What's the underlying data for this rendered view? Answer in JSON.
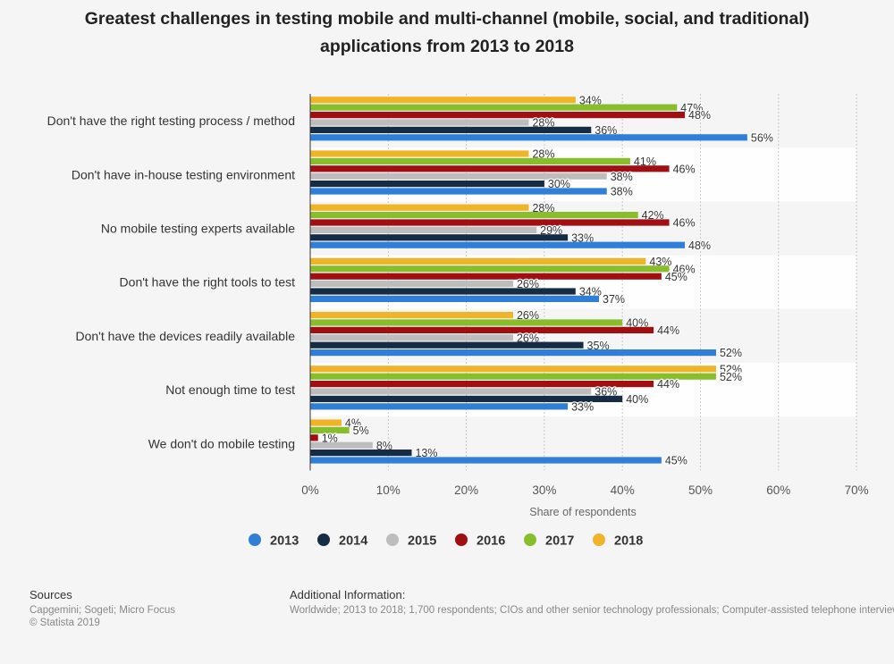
{
  "chart_data": {
    "type": "bar",
    "orientation": "horizontal",
    "title": "Greatest challenges in testing mobile and multi-channel (mobile, social, and traditional) applications from 2013 to 2018",
    "xlabel": "Share of respondents",
    "ylabel": "",
    "xlim": [
      0,
      70
    ],
    "xticks": [
      "0%",
      "10%",
      "20%",
      "30%",
      "40%",
      "50%",
      "60%",
      "70%"
    ],
    "value_suffix": "%",
    "legend_position": "bottom",
    "categories": [
      "Don't have the right testing process / method",
      "Don't have in-house testing environment",
      "No mobile testing experts available",
      "Don't have the right tools to test",
      "Don't have the devices readily available",
      "Not enough time to test",
      "We don't do mobile testing"
    ],
    "series": [
      {
        "name": "2018",
        "color": "#f0b429",
        "values": [
          34,
          28,
          28,
          43,
          26,
          52,
          4
        ]
      },
      {
        "name": "2017",
        "color": "#88be2b",
        "values": [
          47,
          41,
          42,
          46,
          40,
          52,
          5
        ]
      },
      {
        "name": "2016",
        "color": "#a10f13",
        "values": [
          48,
          46,
          46,
          45,
          44,
          44,
          1
        ]
      },
      {
        "name": "2015",
        "color": "#bdbdbd",
        "values": [
          28,
          38,
          29,
          26,
          26,
          36,
          8
        ]
      },
      {
        "name": "2014",
        "color": "#162b44",
        "values": [
          36,
          30,
          33,
          34,
          35,
          40,
          13
        ]
      },
      {
        "name": "2013",
        "color": "#2f7ed8",
        "values": [
          56,
          38,
          48,
          37,
          52,
          33,
          45
        ]
      }
    ],
    "legend_order": [
      "2013",
      "2014",
      "2015",
      "2016",
      "2017",
      "2018"
    ]
  },
  "footer": {
    "sources_heading": "Sources",
    "sources_lines": [
      "Capgemini; Sogeti; Micro Focus",
      "© Statista 2019"
    ],
    "additional_heading": "Additional Information:",
    "additional_text": "Worldwide; 2013 to 2018; 1,700 respondents; CIOs and other senior technology professionals; Computer-assisted telephone interviews"
  }
}
